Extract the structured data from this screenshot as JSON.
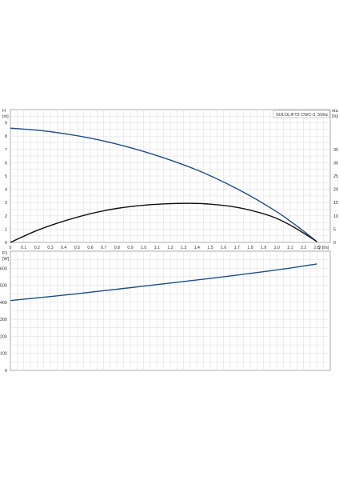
{
  "chart_data": [
    {
      "type": "line",
      "title": "SOLOLIFT2 CWC-3, 50Hz",
      "xlabel": "Q [l/s]",
      "ylabel_left": "H\n[m]",
      "ylabel_right": "eta\n[%]",
      "xlim": [
        0,
        2.4
      ],
      "ylim_left": [
        0,
        10
      ],
      "ylim_right": [
        0,
        50
      ],
      "x_ticks": [
        "0",
        "0.1",
        "0.2",
        "0.3",
        "0.4",
        "0.5",
        "0.6",
        "0.7",
        "0.8",
        "0.9",
        "1.0",
        "1.1",
        "1.2",
        "1.3",
        "1.4",
        "1.5",
        "1.6",
        "1.7",
        "1.8",
        "1.9",
        "2.0",
        "2.1",
        "2.2",
        "2.3"
      ],
      "y_ticks_left": [
        "0",
        "1",
        "2",
        "3",
        "4",
        "5",
        "6",
        "7",
        "8",
        "9"
      ],
      "y_ticks_right": [
        "0",
        "5",
        "10",
        "15",
        "20",
        "25",
        "30",
        "35"
      ],
      "grid": true,
      "series": [
        {
          "axis": "left",
          "color": "#1f4e8c",
          "x": [
            0,
            0.2,
            0.4,
            0.6,
            0.8,
            1.0,
            1.2,
            1.4,
            1.6,
            1.8,
            2.0,
            2.1,
            2.2,
            2.3
          ],
          "y": [
            8.6,
            8.45,
            8.2,
            7.85,
            7.4,
            6.85,
            6.2,
            5.45,
            4.55,
            3.5,
            2.3,
            1.6,
            0.85,
            0.05
          ]
        },
        {
          "axis": "right",
          "color": "#111111",
          "x": [
            0,
            0.2,
            0.4,
            0.6,
            0.8,
            1.0,
            1.2,
            1.35,
            1.5,
            1.7,
            1.9,
            2.0,
            2.1,
            2.2,
            2.3
          ],
          "y": [
            0,
            4.5,
            8,
            10.8,
            12.8,
            14,
            14.6,
            14.7,
            14.4,
            13.2,
            10.8,
            9,
            6.5,
            3.5,
            0.3
          ]
        }
      ]
    },
    {
      "type": "line",
      "ylabel": "P1\n[W]",
      "xlim": [
        0,
        2.4
      ],
      "ylim": [
        0,
        700
      ],
      "y_ticks": [
        "0",
        "100",
        "200",
        "300",
        "400",
        "500",
        "600"
      ],
      "grid": true,
      "series": [
        {
          "color": "#1f4e8c",
          "x": [
            0,
            0.5,
            1.0,
            1.5,
            2.0,
            2.3
          ],
          "y": [
            410,
            450,
            495,
            540,
            590,
            625
          ]
        }
      ]
    }
  ]
}
